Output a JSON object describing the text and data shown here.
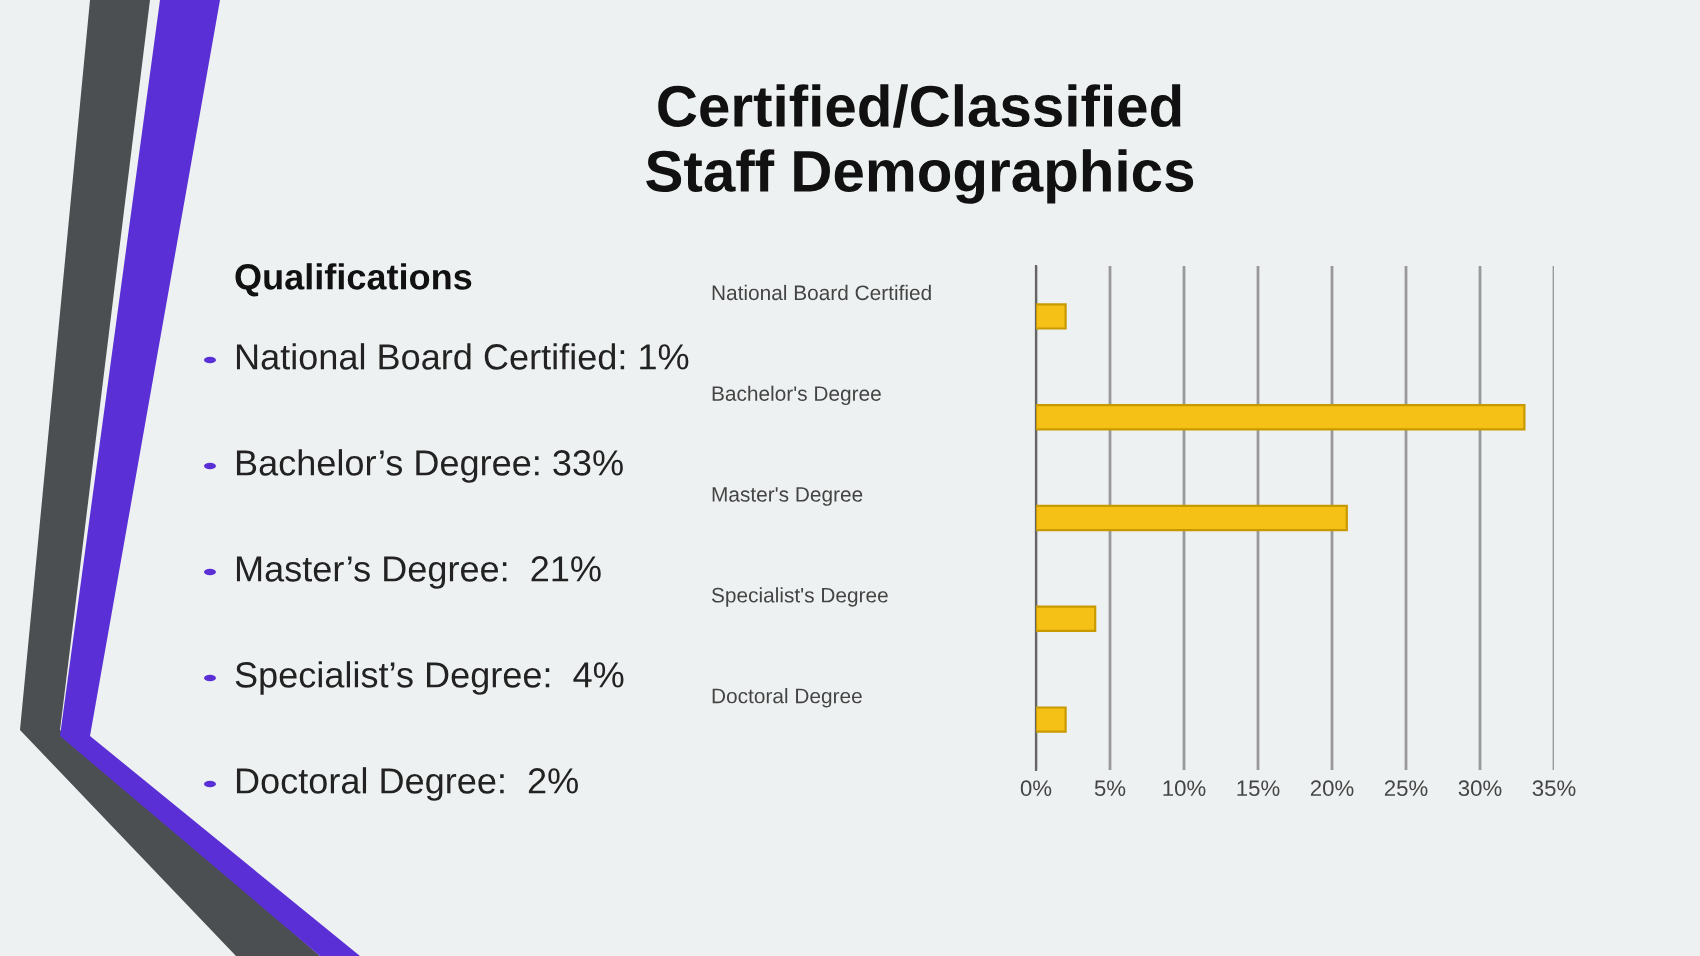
{
  "chart_data": {
    "type": "bar",
    "orientation": "horizontal",
    "title": "Certified/Classified\nStaff Demographics",
    "categories": [
      "National Board Certified",
      "Bachelor's Degree",
      "Master's Degree",
      "Specialist's Degree",
      "Doctoral Degree"
    ],
    "values": [
      2,
      33,
      21,
      4,
      2
    ],
    "color": "#f5c116",
    "xlim": [
      0,
      35
    ],
    "xticks": [
      {
        "value": 0,
        "label": "0%"
      },
      {
        "value": 5,
        "label": "5%"
      },
      {
        "value": 10,
        "label": "10%"
      },
      {
        "value": 15,
        "label": "15%"
      },
      {
        "value": 20,
        "label": "20%"
      },
      {
        "value": 25,
        "label": "25%"
      },
      {
        "value": 30,
        "label": "30%"
      },
      {
        "value": 35,
        "label": "35%"
      }
    ],
    "grid": "x",
    "annotations": [
      "Qualifications",
      "National Board Certified: 1%",
      "Bachelor’s Degree: 33%",
      "Master’s Degree:  21%",
      "Specialist’s Degree:  4%",
      "Doctoral Degree:  2%"
    ]
  }
}
